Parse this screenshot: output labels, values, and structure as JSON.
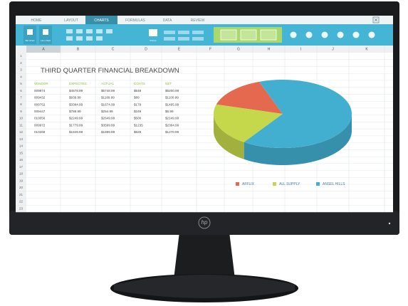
{
  "brand": "hp",
  "app": {
    "tabs": [
      "HOME",
      "LAYOUT",
      "CHARTS",
      "FORMULAS",
      "DATA",
      "REVIEW"
    ],
    "ribbon_labels": [
      "Bar Chart",
      "Line Chart",
      "Picture"
    ],
    "columns": [
      "A",
      "B",
      "C",
      "D",
      "E",
      "F",
      "G",
      "H",
      "I",
      "J",
      "K"
    ],
    "row_numbers": [
      1,
      2,
      3,
      4,
      5,
      6,
      7,
      8,
      9,
      10,
      11,
      12,
      13,
      14,
      15,
      16,
      17,
      18,
      19,
      20,
      21,
      22,
      23
    ],
    "sheet_title": "THIRD QUARTER FINANCIAL BREAKDOWN",
    "table": {
      "header": [
        "VENDOR",
        "EXPECTED",
        "ACTUAL",
        "COSTS",
        "NET"
      ],
      "rows": [
        [
          "009874",
          "$4578.99",
          "$5748.99",
          "$548",
          "$5200.99"
        ],
        [
          "009432",
          "$939.99",
          "$1189.99",
          "$89",
          "$1100.99"
        ],
        [
          "009752",
          "$3384.99",
          "$1674.99",
          "$179",
          "$1495.99"
        ],
        [
          "009447",
          "$788.99",
          "$254.99",
          "$249",
          "$5.99"
        ],
        [
          "010056",
          "$2249.99",
          "$2649.99",
          "$500",
          "$2149.99"
        ],
        [
          "009972",
          "$1779.99",
          "$3599.99",
          "$1235",
          "$2364.99"
        ],
        [
          "010269",
          "$1849.99",
          "$1899.99",
          "$629",
          "$1270.99"
        ]
      ]
    }
  },
  "chart_data": {
    "type": "pie",
    "categories": [
      "AFFLIX",
      "ALL SUPPLY",
      "ANSEL HILLS"
    ],
    "values": [
      15,
      20,
      65
    ],
    "colors": [
      "#e4694f",
      "#c5d74a",
      "#43afd0"
    ]
  }
}
